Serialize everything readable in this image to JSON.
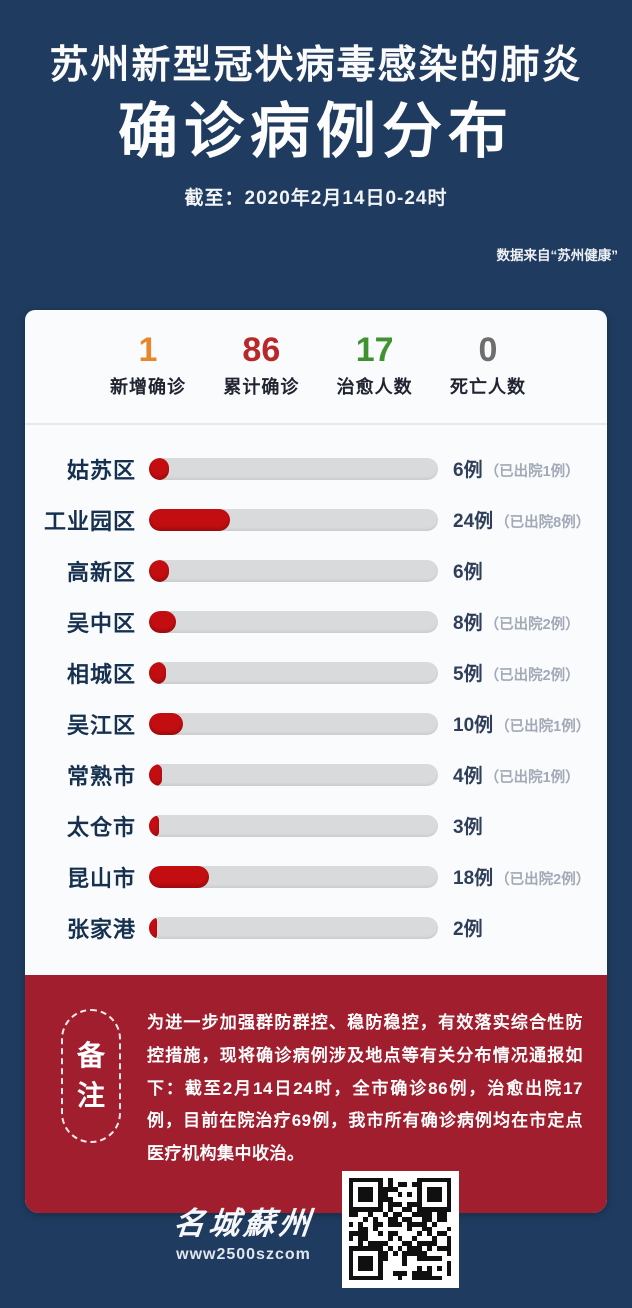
{
  "header": {
    "title_line1": "苏州新型冠状病毒感染的肺炎",
    "title_line2": "确诊病例分布",
    "subtitle": "截至：2020年2月14日0-24时",
    "source": "数据来自“苏州健康”"
  },
  "stats": [
    {
      "value": "1",
      "label": "新增确诊",
      "color": "#e8862b"
    },
    {
      "value": "86",
      "label": "累计确诊",
      "color": "#b8282b"
    },
    {
      "value": "17",
      "label": "治愈人数",
      "color": "#3f9230"
    },
    {
      "value": "0",
      "label": "死亡人数",
      "color": "#6e6e6e"
    }
  ],
  "chart_data": {
    "type": "bar",
    "title": "苏州新型冠状病毒感染的肺炎确诊病例分布",
    "as_of": "截至：2020年2月14日0-24时",
    "categories": [
      "姑苏区",
      "工业园区",
      "高新区",
      "吴中区",
      "相城区",
      "吴江区",
      "常熟市",
      "太仓市",
      "昆山市",
      "张家港"
    ],
    "values": [
      6,
      24,
      6,
      8,
      5,
      10,
      4,
      3,
      18,
      2
    ],
    "discharged": [
      1,
      8,
      null,
      2,
      2,
      1,
      1,
      null,
      2,
      null
    ],
    "case_labels": [
      "6例",
      "24例",
      "6例",
      "8例",
      "5例",
      "10例",
      "4例",
      "3例",
      "18例",
      "2例"
    ],
    "discharged_labels": [
      "（已出院1例）",
      "（已出院8例）",
      "",
      "（已出院2例）",
      "（已出院2例）",
      "（已出院1例）",
      "（已出院1例）",
      "",
      "（已出院2例）",
      ""
    ],
    "scale_max": 86,
    "xlabel": "",
    "ylabel": "",
    "legend": null,
    "grid": false,
    "bar_color": "#c30e11",
    "track_color": "#d9dadb"
  },
  "note": {
    "badge_top": "备",
    "badge_bottom": "注",
    "text": "为进一步加强群防群控、稳防稳控，有效落实综合性防控措施，现将确诊病例涉及地点等有关分布情况通报如下：截至2月14日24时，全市确诊86例，治愈出院17例，目前在院治疗69例，我市所有确诊病例均在市定点医疗机构集中收治。"
  },
  "footer": {
    "logo_text": "名城蘇州",
    "logo_url": "www2500szcom",
    "qr": "qr-code"
  },
  "colors": {
    "background": "#1f3b5f",
    "card": "#fafbfc",
    "note_red": "#a01e2d",
    "bar_red": "#c30e11",
    "district_label": "#16304f"
  }
}
